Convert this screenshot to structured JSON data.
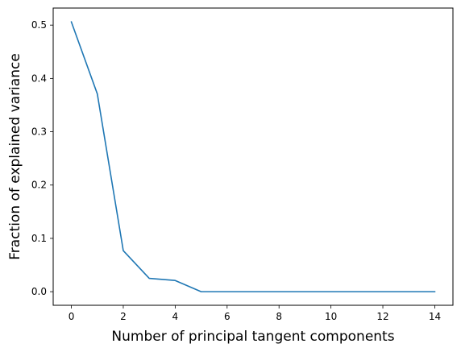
{
  "chart_data": {
    "type": "line",
    "title": "",
    "xlabel": "Number of principal tangent components",
    "ylabel": "Fraction of explained variance",
    "xlim": [
      -0.7,
      14.7
    ],
    "ylim": [
      -0.0255,
      0.532
    ],
    "x_ticks": [
      0,
      2,
      4,
      6,
      8,
      10,
      12,
      14
    ],
    "y_ticks": [
      0.0,
      0.1,
      0.2,
      0.3,
      0.4,
      0.5
    ],
    "x_tick_labels": [
      "0",
      "2",
      "4",
      "6",
      "8",
      "10",
      "12",
      "14"
    ],
    "y_tick_labels": [
      "0.0",
      "0.1",
      "0.2",
      "0.3",
      "0.4",
      "0.5"
    ],
    "grid": false,
    "legend": "none",
    "series": [
      {
        "color": "#1f77b4",
        "x": [
          0,
          1,
          2,
          3,
          4,
          5,
          6,
          7,
          8,
          9,
          10,
          11,
          12,
          13,
          14
        ],
        "y": [
          0.506,
          0.371,
          0.077,
          0.025,
          0.021,
          0.0,
          0.0,
          0.0,
          0.0,
          0.0,
          0.0,
          0.0,
          0.0,
          0.0,
          0.0
        ]
      }
    ]
  }
}
